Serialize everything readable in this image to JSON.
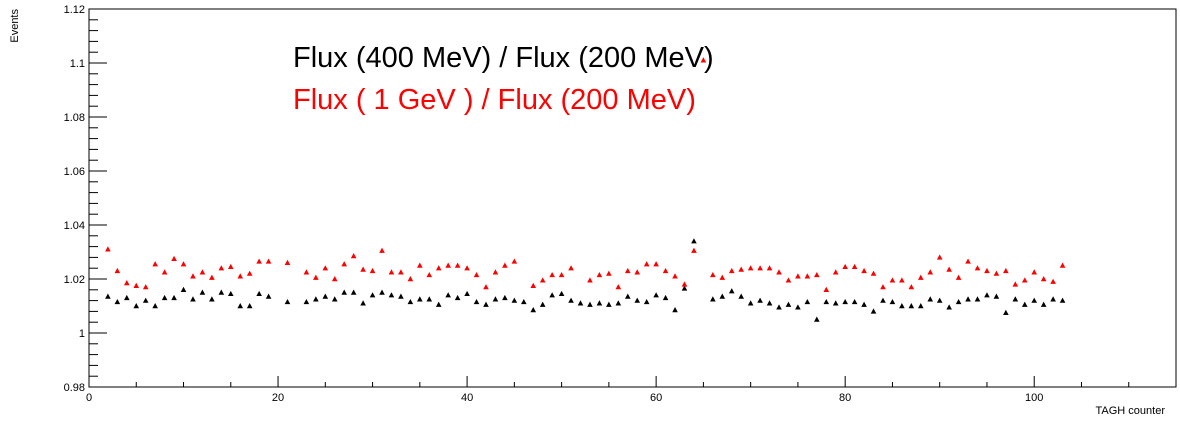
{
  "chart_data": {
    "type": "scatter",
    "title": "",
    "xlabel": "TAGH counter",
    "ylabel": "Events",
    "xlim": [
      0,
      115
    ],
    "ylim": [
      0.98,
      1.12
    ],
    "x_ticks": [
      0,
      20,
      40,
      60,
      80,
      100
    ],
    "x_tick_labels": [
      "0",
      "20",
      "40",
      "60",
      "80",
      "100"
    ],
    "y_ticks": [
      0.98,
      1,
      1.02,
      1.04,
      1.06,
      1.08,
      1.1,
      1.12
    ],
    "y_tick_labels": [
      "0.98",
      "1",
      "1.02",
      "1.04",
      "1.06",
      "1.08",
      "1.1",
      "1.12"
    ],
    "legend": [
      {
        "text": "Flux (400 MeV) / Flux (200  MeV)",
        "color": "#000000"
      },
      {
        "text": "Flux ( 1 GeV ) / Flux (200 MeV)",
        "color": "#ff0000"
      }
    ],
    "series": [
      {
        "color": "#000000",
        "points": [
          [
            2,
            1.0135
          ],
          [
            3,
            1.0115
          ],
          [
            4,
            1.013
          ],
          [
            5,
            1.01
          ],
          [
            6,
            1.012
          ],
          [
            7,
            1.01
          ],
          [
            8,
            1.013
          ],
          [
            9,
            1.013
          ],
          [
            10,
            1.016
          ],
          [
            11,
            1.0125
          ],
          [
            12,
            1.015
          ],
          [
            13,
            1.0125
          ],
          [
            14,
            1.015
          ],
          [
            15,
            1.0145
          ],
          [
            16,
            1.01
          ],
          [
            17,
            1.01
          ],
          [
            18,
            1.0145
          ],
          [
            19,
            1.0135
          ],
          [
            21,
            1.0115
          ],
          [
            23,
            1.0115
          ],
          [
            24,
            1.0125
          ],
          [
            25,
            1.0135
          ],
          [
            26,
            1.0125
          ],
          [
            27,
            1.015
          ],
          [
            28,
            1.015
          ],
          [
            29,
            1.011
          ],
          [
            30,
            1.014
          ],
          [
            31,
            1.015
          ],
          [
            32,
            1.014
          ],
          [
            33,
            1.0135
          ],
          [
            34,
            1.0115
          ],
          [
            35,
            1.0125
          ],
          [
            36,
            1.0125
          ],
          [
            37,
            1.0105
          ],
          [
            38,
            1.014
          ],
          [
            39,
            1.013
          ],
          [
            40,
            1.0145
          ],
          [
            41,
            1.0115
          ],
          [
            42,
            1.0105
          ],
          [
            43,
            1.0125
          ],
          [
            44,
            1.013
          ],
          [
            45,
            1.012
          ],
          [
            46,
            1.0115
          ],
          [
            47,
            1.0085
          ],
          [
            48,
            1.0105
          ],
          [
            49,
            1.014
          ],
          [
            50,
            1.0145
          ],
          [
            51,
            1.012
          ],
          [
            52,
            1.011
          ],
          [
            53,
            1.0105
          ],
          [
            54,
            1.011
          ],
          [
            55,
            1.0105
          ],
          [
            56,
            1.011
          ],
          [
            57,
            1.0135
          ],
          [
            58,
            1.012
          ],
          [
            59,
            1.0115
          ],
          [
            60,
            1.014
          ],
          [
            61,
            1.013
          ],
          [
            62,
            1.0085
          ],
          [
            63,
            1.0165
          ],
          [
            64,
            1.034
          ],
          [
            66,
            1.0125
          ],
          [
            67,
            1.0135
          ],
          [
            68,
            1.0155
          ],
          [
            69,
            1.0135
          ],
          [
            70,
            1.011
          ],
          [
            71,
            1.012
          ],
          [
            72,
            1.011
          ],
          [
            73,
            1.0095
          ],
          [
            74,
            1.0105
          ],
          [
            75,
            1.0095
          ],
          [
            76,
            1.0115
          ],
          [
            77,
            1.005
          ],
          [
            78,
            1.0115
          ],
          [
            79,
            1.011
          ],
          [
            80,
            1.0115
          ],
          [
            81,
            1.0115
          ],
          [
            82,
            1.0105
          ],
          [
            83,
            1.008
          ],
          [
            84,
            1.012
          ],
          [
            85,
            1.0115
          ],
          [
            86,
            1.01
          ],
          [
            87,
            1.01
          ],
          [
            88,
            1.01
          ],
          [
            89,
            1.0125
          ],
          [
            90,
            1.012
          ],
          [
            91,
            1.0095
          ],
          [
            92,
            1.0115
          ],
          [
            93,
            1.0125
          ],
          [
            94,
            1.0125
          ],
          [
            95,
            1.014
          ],
          [
            96,
            1.0135
          ],
          [
            97,
            1.0075
          ],
          [
            98,
            1.0125
          ],
          [
            99,
            1.0105
          ],
          [
            100,
            1.012
          ],
          [
            101,
            1.0105
          ],
          [
            102,
            1.0125
          ],
          [
            103,
            1.012
          ]
        ]
      },
      {
        "color": "#ff0000",
        "points": [
          [
            2,
            1.031
          ],
          [
            3,
            1.023
          ],
          [
            4,
            1.0185
          ],
          [
            5,
            1.0175
          ],
          [
            6,
            1.017
          ],
          [
            7,
            1.0255
          ],
          [
            8,
            1.0225
          ],
          [
            9,
            1.0275
          ],
          [
            10,
            1.0255
          ],
          [
            11,
            1.021
          ],
          [
            12,
            1.0225
          ],
          [
            13,
            1.0205
          ],
          [
            14,
            1.024
          ],
          [
            15,
            1.0245
          ],
          [
            16,
            1.021
          ],
          [
            17,
            1.022
          ],
          [
            18,
            1.0265
          ],
          [
            19,
            1.0265
          ],
          [
            21,
            1.026
          ],
          [
            23,
            1.0225
          ],
          [
            24,
            1.0205
          ],
          [
            25,
            1.024
          ],
          [
            26,
            1.02
          ],
          [
            27,
            1.0255
          ],
          [
            28,
            1.0285
          ],
          [
            29,
            1.0235
          ],
          [
            30,
            1.023
          ],
          [
            31,
            1.0305
          ],
          [
            32,
            1.0225
          ],
          [
            33,
            1.0225
          ],
          [
            34,
            1.02
          ],
          [
            35,
            1.025
          ],
          [
            36,
            1.0215
          ],
          [
            37,
            1.024
          ],
          [
            38,
            1.025
          ],
          [
            39,
            1.025
          ],
          [
            40,
            1.024
          ],
          [
            41,
            1.0215
          ],
          [
            42,
            1.017
          ],
          [
            43,
            1.0225
          ],
          [
            44,
            1.025
          ],
          [
            45,
            1.0265
          ],
          [
            47,
            1.0175
          ],
          [
            48,
            1.0195
          ],
          [
            49,
            1.0215
          ],
          [
            50,
            1.0215
          ],
          [
            51,
            1.024
          ],
          [
            53,
            1.0195
          ],
          [
            54,
            1.0215
          ],
          [
            55,
            1.022
          ],
          [
            56,
            1.017
          ],
          [
            57,
            1.023
          ],
          [
            58,
            1.0225
          ],
          [
            59,
            1.0255
          ],
          [
            60,
            1.0255
          ],
          [
            61,
            1.023
          ],
          [
            62,
            1.021
          ],
          [
            63,
            1.018
          ],
          [
            64,
            1.0305
          ],
          [
            65,
            1.101
          ],
          [
            66,
            1.0215
          ],
          [
            67,
            1.0205
          ],
          [
            68,
            1.023
          ],
          [
            69,
            1.0235
          ],
          [
            70,
            1.024
          ],
          [
            71,
            1.024
          ],
          [
            72,
            1.024
          ],
          [
            73,
            1.0225
          ],
          [
            74,
            1.0195
          ],
          [
            75,
            1.021
          ],
          [
            76,
            1.021
          ],
          [
            77,
            1.0215
          ],
          [
            78,
            1.016
          ],
          [
            79,
            1.0225
          ],
          [
            80,
            1.0245
          ],
          [
            81,
            1.0245
          ],
          [
            82,
            1.023
          ],
          [
            83,
            1.022
          ],
          [
            84,
            1.017
          ],
          [
            85,
            1.0195
          ],
          [
            86,
            1.0195
          ],
          [
            87,
            1.017
          ],
          [
            88,
            1.0205
          ],
          [
            89,
            1.0225
          ],
          [
            90,
            1.028
          ],
          [
            91,
            1.0235
          ],
          [
            92,
            1.0205
          ],
          [
            93,
            1.0265
          ],
          [
            94,
            1.024
          ],
          [
            95,
            1.023
          ],
          [
            96,
            1.022
          ],
          [
            97,
            1.023
          ],
          [
            98,
            1.018
          ],
          [
            99,
            1.0195
          ],
          [
            100,
            1.0225
          ],
          [
            101,
            1.02
          ],
          [
            102,
            1.019
          ],
          [
            103,
            1.025
          ]
        ]
      }
    ]
  }
}
